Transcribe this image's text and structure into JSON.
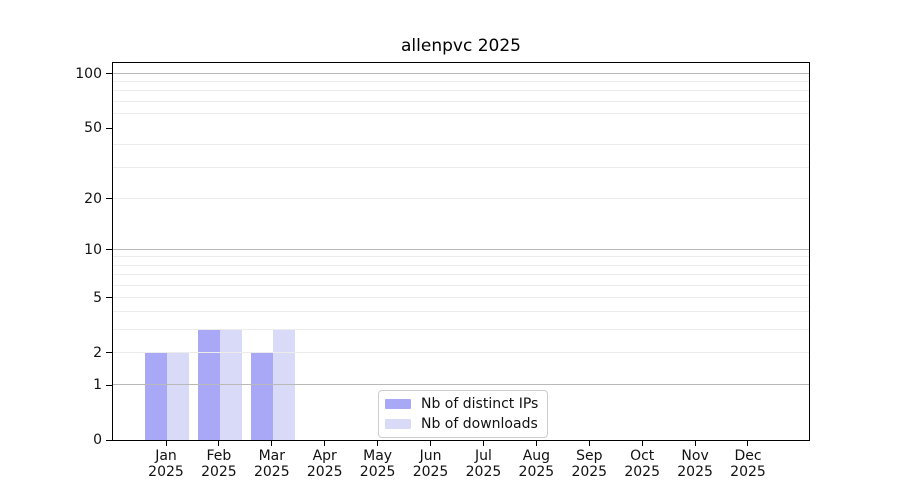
{
  "title": "allenpvc 2025",
  "colors": {
    "ips_bar": "#a8a8f6",
    "downloads_bar": "#d9d9f8",
    "grid_minor": "#ececec",
    "grid_major": "#b9b9b9",
    "spine": "#000000",
    "legend_border": "#cccccc"
  },
  "legend": {
    "items": [
      {
        "label": "Nb of distinct IPs"
      },
      {
        "label": "Nb of downloads"
      }
    ]
  },
  "y_axis": {
    "ticks": [
      {
        "label": "100",
        "value": 100
      },
      {
        "label": "50",
        "value": 50
      },
      {
        "label": "20",
        "value": 20
      },
      {
        "label": "10",
        "value": 10
      },
      {
        "label": "5",
        "value": 5
      },
      {
        "label": "2",
        "value": 2
      },
      {
        "label": "1",
        "value": 1
      },
      {
        "label": "0",
        "value": 0
      }
    ],
    "minor_grid_values": [
      2,
      3,
      4,
      5,
      6,
      7,
      8,
      9,
      20,
      30,
      40,
      60,
      70,
      80,
      90
    ],
    "major_grid_values": [
      1,
      10,
      100
    ]
  },
  "x_axis": {
    "months": [
      {
        "line1": "Jan",
        "line2": "2025"
      },
      {
        "line1": "Feb",
        "line2": "2025"
      },
      {
        "line1": "Mar",
        "line2": "2025"
      },
      {
        "line1": "Apr",
        "line2": "2025"
      },
      {
        "line1": "May",
        "line2": "2025"
      },
      {
        "line1": "Jun",
        "line2": "2025"
      },
      {
        "line1": "Jul",
        "line2": "2025"
      },
      {
        "line1": "Aug",
        "line2": "2025"
      },
      {
        "line1": "Sep",
        "line2": "2025"
      },
      {
        "line1": "Oct",
        "line2": "2025"
      },
      {
        "line1": "Nov",
        "line2": "2025"
      },
      {
        "line1": "Dec",
        "line2": "2025"
      }
    ]
  },
  "chart_data": {
    "type": "bar",
    "title": "allenpvc 2025",
    "categories": [
      "Jan 2025",
      "Feb 2025",
      "Mar 2025",
      "Apr 2025",
      "May 2025",
      "Jun 2025",
      "Jul 2025",
      "Aug 2025",
      "Sep 2025",
      "Oct 2025",
      "Nov 2025",
      "Dec 2025"
    ],
    "series": [
      {
        "name": "Nb of distinct IPs",
        "color": "#a8a8f6",
        "values": [
          2,
          3,
          2,
          0,
          0,
          0,
          0,
          0,
          0,
          0,
          0,
          0
        ]
      },
      {
        "name": "Nb of downloads",
        "color": "#d9d9f8",
        "values": [
          2,
          3,
          3,
          0,
          0,
          0,
          0,
          0,
          0,
          0,
          0,
          0
        ]
      }
    ],
    "xlabel": "",
    "ylabel": "",
    "yscale": "log1p-symlog",
    "yticks": [
      0,
      1,
      2,
      5,
      10,
      20,
      50,
      100
    ],
    "ylim": [
      0,
      115
    ],
    "grid": "horizontal major+minor, drawn above bars",
    "legend_position": "inside axes, bottom center"
  }
}
